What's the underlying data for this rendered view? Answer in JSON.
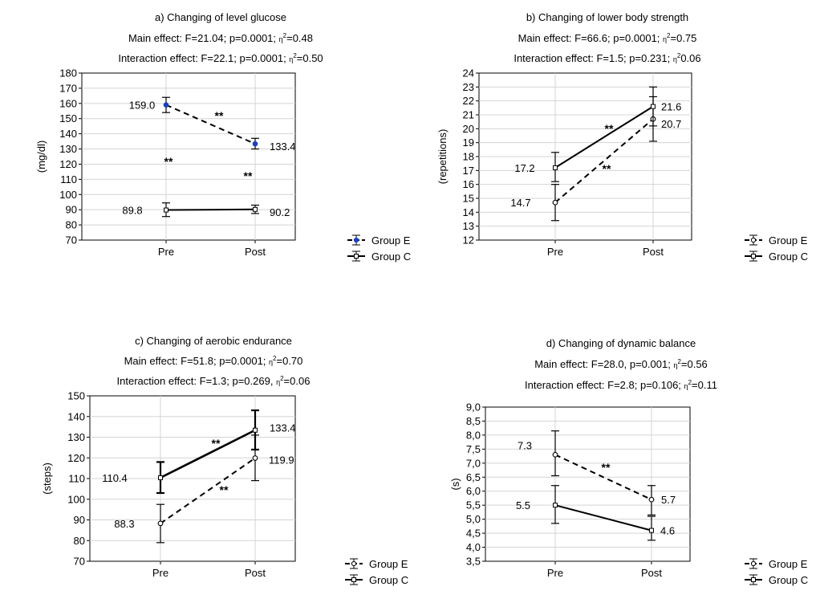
{
  "chart_data": [
    {
      "panel": "a",
      "type": "line",
      "title": "a) Changing of level glucose",
      "subtitle_main": "Main effect: F=21.04; p=0.0001;",
      "subtitle_main_eta": "=0.48",
      "subtitle_interaction": "Interaction effect: F=22.1; p=0.0001;",
      "subtitle_interaction_eta": "=0.50",
      "ylabel": "(mg/dl)",
      "categories": [
        "Pre",
        "Post"
      ],
      "ylim": [
        70,
        180
      ],
      "yticks": [
        70,
        80,
        90,
        100,
        110,
        120,
        130,
        140,
        150,
        160,
        170,
        180
      ],
      "grid": true,
      "legend_position": "right",
      "series": [
        {
          "name": "Group E",
          "values": [
            159.0,
            133.4
          ],
          "err_low": [
            154,
            130
          ],
          "err_high": [
            164,
            137
          ],
          "labels": [
            "159.0",
            "133.4"
          ],
          "style": "dashed",
          "marker_color": "#1a3fbf"
        },
        {
          "name": "Group C",
          "values": [
            89.8,
            90.2
          ],
          "err_low": [
            85.5,
            87.5
          ],
          "err_high": [
            94.5,
            93
          ],
          "labels": [
            "89.8",
            "90.2"
          ],
          "style": "solid",
          "marker_color": "#000000"
        }
      ],
      "annotations": [
        "**",
        "**",
        "**"
      ]
    },
    {
      "panel": "b",
      "type": "line",
      "title": "b) Changing of lower body strength",
      "subtitle_main": "Main effect: F=66.6; p=0.0001;",
      "subtitle_main_eta": "=0.75",
      "subtitle_interaction": "Interaction effect: F=1.5; p=0.231;",
      "subtitle_interaction_eta": "0.06",
      "ylabel": "(repetitions)",
      "categories": [
        "Pre",
        "Post"
      ],
      "ylim": [
        12,
        24
      ],
      "yticks": [
        12,
        13,
        14,
        15,
        16,
        17,
        18,
        19,
        20,
        21,
        22,
        23,
        24
      ],
      "grid": true,
      "legend_position": "right",
      "series": [
        {
          "name": "Group E",
          "values": [
            14.7,
            20.7
          ],
          "err_low": [
            13.4,
            19.1
          ],
          "err_high": [
            16.0,
            22.3
          ],
          "labels": [
            "14.7",
            "20.7"
          ],
          "style": "dashed",
          "marker_color": "#000000"
        },
        {
          "name": "Group C",
          "values": [
            17.2,
            21.6
          ],
          "err_low": [
            16.2,
            20.2
          ],
          "err_high": [
            18.3,
            23.0
          ],
          "labels": [
            "17.2",
            "21.6"
          ],
          "style": "solid",
          "marker_color": "#000000"
        }
      ],
      "annotations": [
        "**",
        "**"
      ]
    },
    {
      "panel": "c",
      "type": "line",
      "title": "c) Changing of aerobic endurance",
      "subtitle_main": "Main effect: F=51.8; p=0.0001;",
      "subtitle_main_eta": "=0.70",
      "subtitle_interaction": "Interaction effect: F=1.3; p=0.269,",
      "subtitle_interaction_eta": "=0.06",
      "ylabel": "(steps)",
      "categories": [
        "Pre",
        "Post"
      ],
      "ylim": [
        70,
        150
      ],
      "yticks": [
        70,
        80,
        90,
        100,
        110,
        120,
        130,
        140,
        150
      ],
      "grid": true,
      "legend_position": "right",
      "series": [
        {
          "name": "Group E",
          "values": [
            88.3,
            119.9
          ],
          "err_low": [
            79,
            109
          ],
          "err_high": [
            97.5,
            131
          ],
          "labels": [
            "88.3",
            "119.9"
          ],
          "style": "dashed",
          "marker_color": "#000000"
        },
        {
          "name": "Group C",
          "values": [
            110.4,
            133.4
          ],
          "err_low": [
            103,
            124
          ],
          "err_high": [
            118,
            143
          ],
          "labels": [
            "110.4",
            "133.4"
          ],
          "style": "solid",
          "marker_color": "#000000"
        }
      ],
      "annotations": [
        "**",
        "**"
      ]
    },
    {
      "panel": "d",
      "type": "line",
      "title": "d) Changing of dynamic balance",
      "subtitle_main": "Main effect: F=28.0, p=0.001;",
      "subtitle_main_eta": "=0.56",
      "subtitle_interaction": "Interaction effect: F=2.8; p=0.106;",
      "subtitle_interaction_eta": "=0.11",
      "ylabel": "(s)",
      "categories": [
        "Pre",
        "Post"
      ],
      "ylim": [
        3.5,
        9.0
      ],
      "yticks": [
        "3,5",
        "4,0",
        "4,5",
        "5,0",
        "5,5",
        "6,0",
        "6,5",
        "7,0",
        "7,5",
        "8,0",
        "8,5",
        "9,0"
      ],
      "grid": true,
      "legend_position": "right",
      "series": [
        {
          "name": "Group E",
          "values": [
            7.3,
            5.7
          ],
          "err_low": [
            6.55,
            5.15
          ],
          "err_high": [
            8.15,
            6.2
          ],
          "labels": [
            "7.3",
            "5.7"
          ],
          "style": "dashed",
          "marker_color": "#000000"
        },
        {
          "name": "Group C",
          "values": [
            5.5,
            4.6
          ],
          "err_low": [
            4.85,
            4.25
          ],
          "err_high": [
            6.2,
            5.1
          ],
          "labels": [
            "5.5",
            "4.6"
          ],
          "style": "solid",
          "marker_color": "#000000"
        }
      ],
      "annotations": [
        "**"
      ]
    }
  ]
}
